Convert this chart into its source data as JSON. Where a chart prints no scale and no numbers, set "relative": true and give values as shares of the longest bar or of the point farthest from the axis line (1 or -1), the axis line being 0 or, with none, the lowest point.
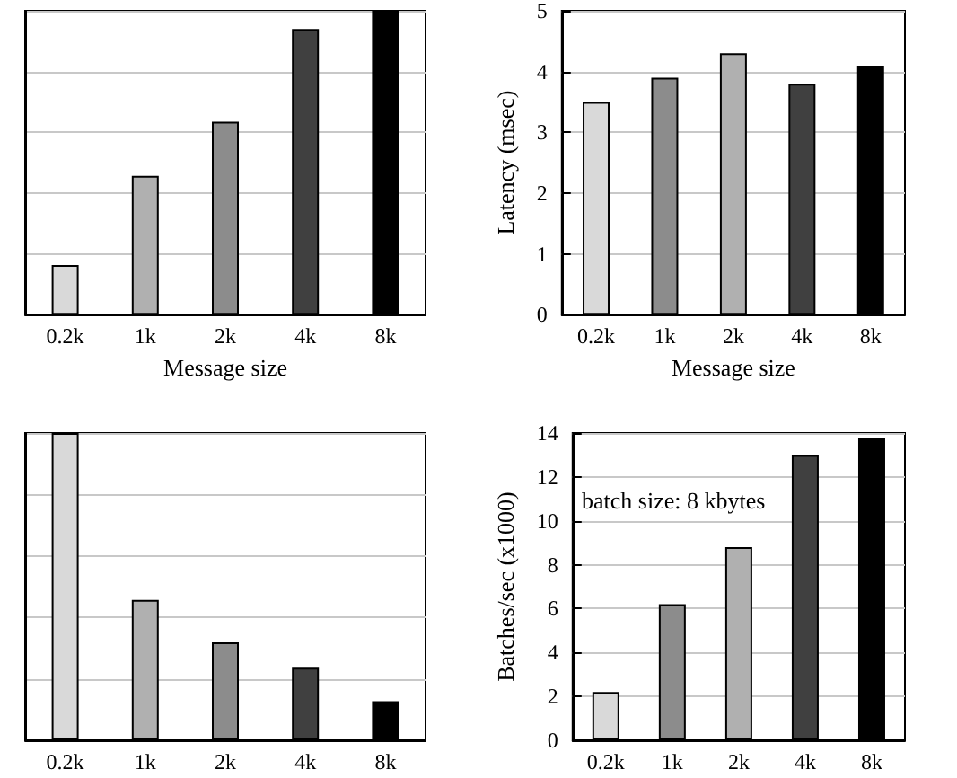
{
  "chart_data": [
    {
      "type": "bar",
      "xlabel": "Message size",
      "categories": [
        "0.2k",
        "1k",
        "2k",
        "4k",
        "8k"
      ],
      "values": [
        0.163,
        0.457,
        0.635,
        0.94,
        1
      ],
      "colors": [
        "#d9d9d9",
        "#b0b0b0",
        "#8c8c8c",
        "#404040",
        "#000000"
      ],
      "relative": true,
      "grid": "y"
    },
    {
      "type": "bar",
      "xlabel": "Message size",
      "ylabel": "Latency (msec)",
      "categories": [
        "0.2k",
        "1k",
        "2k",
        "4k",
        "8k"
      ],
      "values": [
        3.5,
        3.9,
        4.3,
        3.8,
        4.1
      ],
      "colors": [
        "#d9d9d9",
        "#8c8c8c",
        "#b0b0b0",
        "#404040",
        "#000000"
      ],
      "ylim": [
        0,
        5
      ],
      "yticks": [
        0,
        1,
        2,
        3,
        4,
        5
      ],
      "grid": "y"
    },
    {
      "type": "bar",
      "categories": [
        "0.2k",
        "1k",
        "2k",
        "4k",
        "8k"
      ],
      "values": [
        1,
        0.457,
        0.319,
        0.236,
        0.127
      ],
      "colors": [
        "#d9d9d9",
        "#b0b0b0",
        "#8c8c8c",
        "#404040",
        "#000000"
      ],
      "relative": true,
      "grid": "y"
    },
    {
      "type": "bar",
      "ylabel": "Batches/sec (x1000)",
      "annotations": [
        "batch size: 8 kbytes"
      ],
      "categories": [
        "0.2k",
        "1k",
        "2k",
        "4k",
        "8k"
      ],
      "values": [
        2.2,
        6.2,
        8.8,
        13,
        13.8
      ],
      "colors": [
        "#d9d9d9",
        "#8c8c8c",
        "#b0b0b0",
        "#404040",
        "#000000"
      ],
      "ylim": [
        0,
        14
      ],
      "yticks": [
        0,
        2,
        4,
        6,
        8,
        10,
        12,
        14
      ],
      "grid": "y"
    }
  ]
}
